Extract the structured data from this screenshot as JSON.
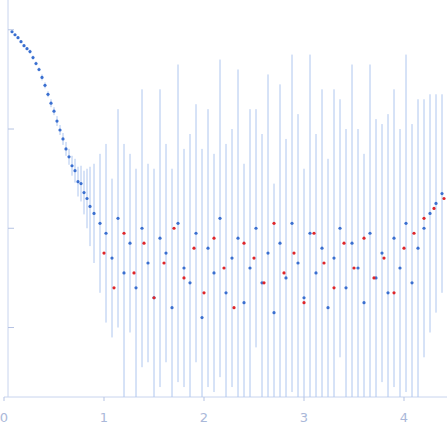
{
  "chart_data": {
    "type": "scatter",
    "xlim": [
      0,
      4.43
    ],
    "ylim": [
      0.3,
      4.3
    ],
    "xticks": [
      0,
      1,
      2,
      3,
      4
    ],
    "yticks": [
      1,
      2,
      3,
      4
    ],
    "tick_labels": "x",
    "series": [
      {
        "color": "#3a6fd0",
        "marker": "circle",
        "x": [
          0.08,
          0.11,
          0.14,
          0.17,
          0.2,
          0.23,
          0.26,
          0.29,
          0.32,
          0.35,
          0.38,
          0.41,
          0.44,
          0.47,
          0.5,
          0.53,
          0.56,
          0.59,
          0.62,
          0.65,
          0.68,
          0.71,
          0.74,
          0.77,
          0.8,
          0.83,
          0.86,
          0.9,
          0.96,
          1.02,
          1.08,
          1.14,
          1.2,
          1.26,
          1.32,
          1.38,
          1.44,
          1.5,
          1.56,
          1.62,
          1.68,
          1.74,
          1.8,
          1.86,
          1.92,
          1.98,
          2.04,
          2.1,
          2.16,
          2.22,
          2.28,
          2.34,
          2.4,
          2.46,
          2.52,
          2.58,
          2.64,
          2.7,
          2.76,
          2.82,
          2.88,
          2.94,
          3.0,
          3.06,
          3.12,
          3.18,
          3.24,
          3.3,
          3.36,
          3.42,
          3.48,
          3.54,
          3.6,
          3.66,
          3.72,
          3.78,
          3.84,
          3.9,
          3.96,
          4.02,
          4.08,
          4.14,
          4.2,
          4.26,
          4.32,
          4.38
        ],
        "values": [
          3.98,
          3.95,
          3.92,
          3.88,
          3.84,
          3.81,
          3.78,
          3.72,
          3.66,
          3.6,
          3.52,
          3.44,
          3.35,
          3.26,
          3.18,
          3.08,
          2.99,
          2.9,
          2.8,
          2.72,
          2.63,
          2.58,
          2.47,
          2.45,
          2.36,
          2.3,
          2.22,
          2.15,
          2.05,
          1.95,
          1.7,
          2.1,
          1.55,
          1.85,
          1.4,
          2.0,
          1.65,
          1.3,
          1.9,
          1.75,
          1.2,
          2.05,
          1.6,
          1.45,
          1.95,
          1.1,
          1.8,
          1.55,
          2.1,
          1.35,
          1.7,
          1.9,
          1.25,
          1.6,
          2.0,
          1.45,
          1.75,
          1.15,
          1.85,
          1.5,
          2.05,
          1.65,
          1.3,
          1.95,
          1.55,
          1.8,
          1.2,
          1.7,
          2.0,
          1.4,
          1.85,
          1.6,
          1.25,
          1.95,
          1.5,
          1.75,
          1.35,
          1.9,
          1.6,
          2.05,
          1.45,
          1.8,
          2.0,
          2.15,
          2.25,
          2.35
        ],
        "errors": [
          0.01,
          0.01,
          0.01,
          0.01,
          0.01,
          0.01,
          0.02,
          0.02,
          0.02,
          0.02,
          0.03,
          0.03,
          0.03,
          0.04,
          0.04,
          0.05,
          0.05,
          0.06,
          0.07,
          0.08,
          0.1,
          0.12,
          0.15,
          0.18,
          0.22,
          0.3,
          0.4,
          0.5,
          0.7,
          0.9,
          0.8,
          1.1,
          1.3,
          0.9,
          1.2,
          1.4,
          1.0,
          1.3,
          1.5,
          1.1,
          1.4,
          1.6,
          1.2,
          1.5,
          1.3,
          1.7,
          1.4,
          1.2,
          1.6,
          1.5,
          1.3,
          1.7,
          1.4,
          1.6,
          1.2,
          1.5,
          1.8,
          1.3,
          1.6,
          1.4,
          1.7,
          1.5,
          1.3,
          1.8,
          1.4,
          1.6,
          1.5,
          1.7,
          1.3,
          1.6,
          1.8,
          1.4,
          1.5,
          1.7,
          1.6,
          1.3,
          1.8,
          1.5,
          1.4,
          1.7,
          1.6,
          1.5,
          1.3,
          1.2,
          1.1,
          1.0
        ]
      },
      {
        "color": "#e0262a",
        "marker": "circle",
        "x": [
          1.0,
          1.1,
          1.2,
          1.3,
          1.4,
          1.5,
          1.6,
          1.7,
          1.8,
          1.9,
          2.0,
          2.1,
          2.2,
          2.3,
          2.4,
          2.5,
          2.6,
          2.7,
          2.8,
          2.9,
          3.0,
          3.1,
          3.2,
          3.3,
          3.4,
          3.5,
          3.6,
          3.7,
          3.8,
          3.9,
          4.0,
          4.1,
          4.2,
          4.3,
          4.4
        ],
        "values": [
          1.75,
          1.4,
          1.95,
          1.55,
          1.85,
          1.3,
          1.65,
          2.0,
          1.5,
          1.8,
          1.35,
          1.9,
          1.6,
          1.2,
          1.85,
          1.7,
          1.45,
          2.05,
          1.55,
          1.75,
          1.25,
          1.95,
          1.65,
          1.4,
          1.85,
          1.6,
          1.9,
          1.5,
          1.7,
          1.35,
          1.8,
          1.95,
          2.1,
          2.2,
          2.3
        ]
      }
    ]
  }
}
